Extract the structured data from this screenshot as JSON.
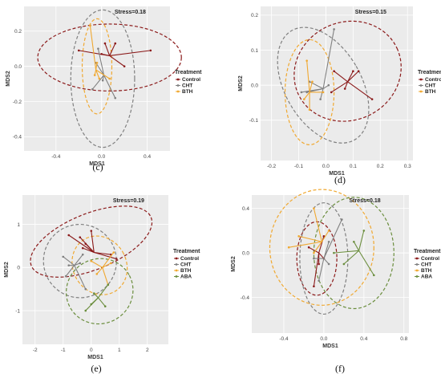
{
  "colors": {
    "Control": "#8b1a1a",
    "CHT": "#808080",
    "BTH": "#f0a830",
    "ABA": "#6b8e3e"
  },
  "chart_data": [
    {
      "type": "scatter",
      "panel_label": "(c)",
      "stress": "Stress=0.18",
      "xlabel": "MDS1",
      "ylabel": "MDS2",
      "xlim": [
        -0.68,
        0.6
      ],
      "ylim": [
        -0.48,
        0.34
      ],
      "xticks": [
        -0.4,
        0.0,
        0.4
      ],
      "xtick_labels": [
        "-0.4",
        "0.0",
        "0.4"
      ],
      "yticks": [
        -0.4,
        -0.2,
        0.0,
        0.2
      ],
      "ytick_labels": [
        "-0.4",
        "-0.2",
        "0.0",
        "0.2"
      ],
      "legend_title": "Treatment",
      "series": [
        {
          "name": "Control",
          "color": "#8b1a1a",
          "centroid": [
            0.07,
            0.06
          ],
          "points": [
            [
              -0.2,
              0.09
            ],
            [
              0.43,
              0.09
            ],
            [
              0.2,
              0.0
            ],
            [
              0.03,
              0.13
            ],
            [
              0.12,
              0.13
            ],
            [
              0.0,
              0.07
            ]
          ],
          "ellipse": {
            "cx": 0.07,
            "cy": 0.05,
            "rx": 0.63,
            "ry": 0.19,
            "angle": 0
          }
        },
        {
          "name": "CHT",
          "color": "#808080",
          "centroid": [
            0.02,
            -0.05
          ],
          "points": [
            [
              -0.03,
              0.1
            ],
            [
              -0.08,
              -0.13
            ],
            [
              0.12,
              -0.18
            ],
            [
              -0.05,
              0.02
            ],
            [
              0.01,
              -0.08
            ]
          ],
          "ellipse": {
            "cx": 0.01,
            "cy": -0.07,
            "rx": 0.28,
            "ry": 0.39,
            "angle": 0
          }
        },
        {
          "name": "BTH",
          "color": "#f0a830",
          "centroid": [
            -0.05,
            -0.02
          ],
          "points": [
            [
              -0.1,
              0.23
            ],
            [
              -0.04,
              0.02
            ],
            [
              0.07,
              -0.07
            ],
            [
              -0.02,
              -0.07
            ],
            [
              -0.06,
              -0.05
            ]
          ],
          "ellipse": {
            "cx": -0.04,
            "cy": 0.0,
            "rx": 0.13,
            "ry": 0.27,
            "angle": 0
          }
        }
      ]
    },
    {
      "type": "scatter",
      "panel_label": "(d)",
      "stress": "Stress=0.15",
      "xlabel": "MDS1",
      "ylabel": "MDS2",
      "xlim": [
        -0.24,
        0.32
      ],
      "ylim": [
        -0.215,
        0.225
      ],
      "xticks": [
        -0.2,
        -0.1,
        0.0,
        0.1,
        0.2,
        0.3
      ],
      "xtick_labels": [
        "-0.2",
        "-0.1",
        "0.0",
        "0.1",
        "0.2",
        "0.3"
      ],
      "yticks": [
        -0.1,
        0.0,
        0.1,
        0.2
      ],
      "ytick_labels": [
        "-0.1",
        "0.0",
        "0.1",
        "0.2"
      ],
      "legend_title": "Treatment",
      "series": [
        {
          "name": "Control",
          "color": "#8b1a1a",
          "centroid": [
            0.08,
            0.01
          ],
          "points": [
            [
              0.03,
              0.04
            ],
            [
              0.1,
              0.04
            ],
            [
              0.12,
              0.04
            ],
            [
              0.17,
              -0.04
            ],
            [
              0.02,
              -0.02
            ],
            [
              0.07,
              -0.01
            ]
          ],
          "ellipse": {
            "cx": 0.08,
            "cy": 0.04,
            "rx": 0.2,
            "ry": 0.14,
            "angle": -25
          }
        },
        {
          "name": "CHT",
          "color": "#808080",
          "centroid": [
            -0.01,
            -0.01
          ],
          "points": [
            [
              0.03,
              0.16
            ],
            [
              -0.06,
              0.01
            ],
            [
              -0.07,
              -0.02
            ],
            [
              -0.02,
              -0.04
            ],
            [
              0.01,
              0.0
            ],
            [
              -0.09,
              -0.02
            ]
          ],
          "ellipse": {
            "cx": -0.01,
            "cy": 0.0,
            "rx": 0.14,
            "ry": 0.18,
            "angle": -30
          }
        },
        {
          "name": "BTH",
          "color": "#f0a830",
          "centroid": [
            -0.06,
            -0.02
          ],
          "points": [
            [
              -0.07,
              0.07
            ],
            [
              -0.01,
              -0.02
            ],
            [
              -0.06,
              -0.07
            ],
            [
              -0.05,
              0.01
            ],
            [
              -0.08,
              -0.04
            ]
          ],
          "ellipse": {
            "cx": -0.06,
            "cy": -0.02,
            "rx": 0.09,
            "ry": 0.15,
            "angle": 0
          }
        }
      ]
    },
    {
      "type": "scatter",
      "panel_label": "(e)",
      "stress": "Stress=0.19",
      "xlabel": "MDS1",
      "ylabel": "MDS2",
      "xlim": [
        -2.45,
        2.75
      ],
      "ylim": [
        -1.78,
        1.68
      ],
      "xticks": [
        -2,
        -1,
        0,
        1,
        2
      ],
      "xtick_labels": [
        "-2",
        "-1",
        "0",
        "1",
        "2"
      ],
      "yticks": [
        -1,
        0,
        1
      ],
      "ytick_labels": [
        "-1",
        "0",
        "1"
      ],
      "legend_title": "Treatment",
      "series": [
        {
          "name": "Control",
          "color": "#8b1a1a",
          "centroid": [
            0.1,
            0.35
          ],
          "points": [
            [
              -0.8,
              0.75
            ],
            [
              -0.4,
              0.7
            ],
            [
              0.0,
              0.85
            ],
            [
              -0.3,
              0.45
            ],
            [
              0.7,
              0.3
            ],
            [
              0.9,
              0.2
            ],
            [
              -0.2,
              0.55
            ]
          ],
          "ellipse": {
            "cx": 0.0,
            "cy": 0.6,
            "rx": 2.3,
            "ry": 0.65,
            "angle": -22
          }
        },
        {
          "name": "CHT",
          "color": "#808080",
          "centroid": [
            -0.6,
            0.05
          ],
          "points": [
            [
              -1.0,
              0.25
            ],
            [
              -0.9,
              -0.2
            ],
            [
              -0.3,
              0.3
            ],
            [
              -0.2,
              -0.5
            ],
            [
              -0.4,
              0.1
            ],
            [
              -0.8,
              0.05
            ]
          ],
          "ellipse": {
            "cx": -0.4,
            "cy": 0.15,
            "rx": 1.3,
            "ry": 0.85,
            "angle": -15
          }
        },
        {
          "name": "BTH",
          "color": "#f0a830",
          "centroid": [
            0.4,
            0.0
          ],
          "points": [
            [
              0.8,
              0.35
            ],
            [
              0.7,
              0.1
            ],
            [
              0.2,
              -0.15
            ],
            [
              0.6,
              -0.4
            ],
            [
              0.0,
              0.15
            ]
          ],
          "ellipse": {
            "cx": 0.3,
            "cy": 0.05,
            "rx": 0.95,
            "ry": 0.7,
            "angle": -30
          }
        },
        {
          "name": "ABA",
          "color": "#6b8e3e",
          "centroid": [
            0.25,
            -0.7
          ],
          "points": [
            [
              0.6,
              -0.4
            ],
            [
              -0.2,
              -1.0
            ],
            [
              0.0,
              -0.85
            ],
            [
              0.5,
              -0.9
            ],
            [
              0.1,
              -0.6
            ]
          ],
          "ellipse": {
            "cx": 0.3,
            "cy": -0.55,
            "rx": 1.2,
            "ry": 0.75,
            "angle": -28
          }
        }
      ]
    },
    {
      "type": "scatter",
      "panel_label": "(f)",
      "stress": "Stress=0.18",
      "xlabel": "MDS1",
      "ylabel": "MDS2",
      "xlim": [
        -0.72,
        0.85
      ],
      "ylim": [
        -0.72,
        0.52
      ],
      "xticks": [
        -0.4,
        0.0,
        0.4,
        0.8
      ],
      "xtick_labels": [
        "-0.4",
        "0.0",
        "0.4",
        "0.8"
      ],
      "yticks": [
        -0.4,
        0.0,
        0.4
      ],
      "ytick_labels": [
        "-0.4",
        "0.0",
        "0.4"
      ],
      "legend_title": "Treatment",
      "series": [
        {
          "name": "Control",
          "color": "#8b1a1a",
          "centroid": [
            -0.05,
            0.0
          ],
          "points": [
            [
              -0.1,
              -0.3
            ],
            [
              0.0,
              -0.05
            ],
            [
              -0.15,
              0.05
            ],
            [
              0.0,
              0.15
            ],
            [
              -0.05,
              -0.1
            ]
          ],
          "ellipse": {
            "cx": -0.07,
            "cy": -0.05,
            "rx": 0.2,
            "ry": 0.33,
            "angle": 0
          }
        },
        {
          "name": "CHT",
          "color": "#808080",
          "centroid": [
            0.0,
            -0.05
          ],
          "points": [
            [
              0.18,
              0.3
            ],
            [
              -0.05,
              -0.25
            ],
            [
              0.05,
              -0.1
            ],
            [
              -0.1,
              -0.05
            ],
            [
              0.05,
              0.1
            ]
          ],
          "ellipse": {
            "cx": 0.0,
            "cy": -0.05,
            "rx": 0.24,
            "ry": 0.5,
            "angle": 0
          }
        },
        {
          "name": "BTH",
          "color": "#f0a830",
          "centroid": [
            -0.02,
            0.1
          ],
          "points": [
            [
              -0.1,
              0.4
            ],
            [
              -0.35,
              0.05
            ],
            [
              -0.25,
              0.15
            ],
            [
              0.05,
              0.2
            ],
            [
              -0.1,
              0.0
            ]
          ],
          "ellipse": {
            "cx": -0.02,
            "cy": 0.05,
            "rx": 0.52,
            "ry": 0.52,
            "angle": 0
          }
        },
        {
          "name": "ABA",
          "color": "#6b8e3e",
          "centroid": [
            0.35,
            0.02
          ],
          "points": [
            [
              0.5,
              -0.2
            ],
            [
              0.4,
              0.2
            ],
            [
              0.2,
              -0.1
            ],
            [
              0.3,
              0.1
            ],
            [
              0.1,
              0.0
            ]
          ],
          "ellipse": {
            "cx": 0.3,
            "cy": 0.0,
            "rx": 0.4,
            "ry": 0.5,
            "angle": 0
          }
        }
      ]
    }
  ]
}
